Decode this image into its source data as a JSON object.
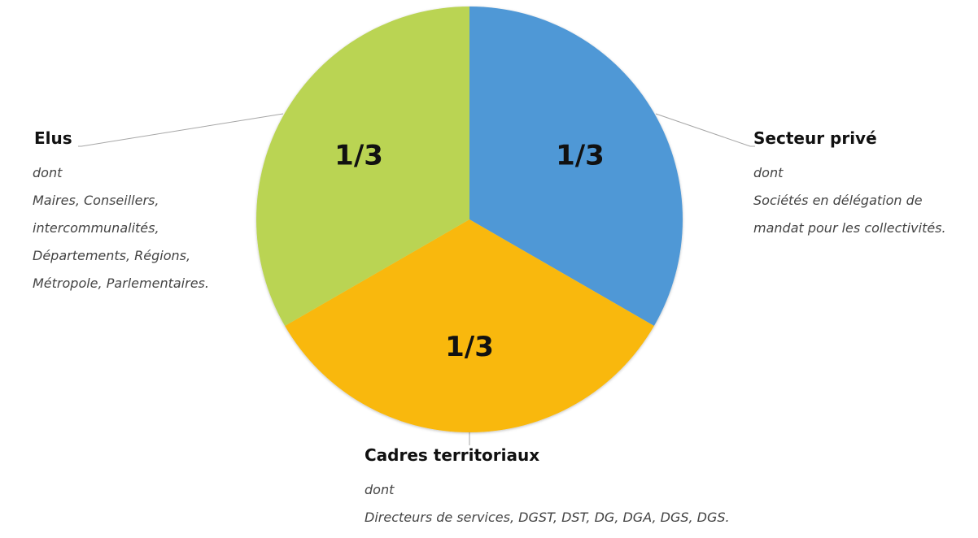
{
  "chart_data": {
    "type": "pie",
    "slices": [
      {
        "name": "Secteur privé",
        "value": 1,
        "label": "1/3",
        "color": "#4f98d6",
        "details": [
          "dont",
          "Sociétés en délégation de",
          "mandat pour les collectivités."
        ]
      },
      {
        "name": "Cadres territoriaux",
        "value": 1,
        "label": "1/3",
        "color": "#f9b80f",
        "details": [
          "dont",
          "Directeurs de services, DGST, DST, DG, DGA, DGS, DGS."
        ]
      },
      {
        "name": "Elus",
        "value": 1,
        "label": "1/3",
        "color": "#bad452",
        "details": [
          "dont",
          "Maires, Conseillers,",
          "intercommunalités,",
          "Départements, Régions,",
          "Métropole, Parlementaires."
        ]
      }
    ],
    "start_angle_deg": 0,
    "direction": "clockwise",
    "legend": "leader-lines"
  }
}
